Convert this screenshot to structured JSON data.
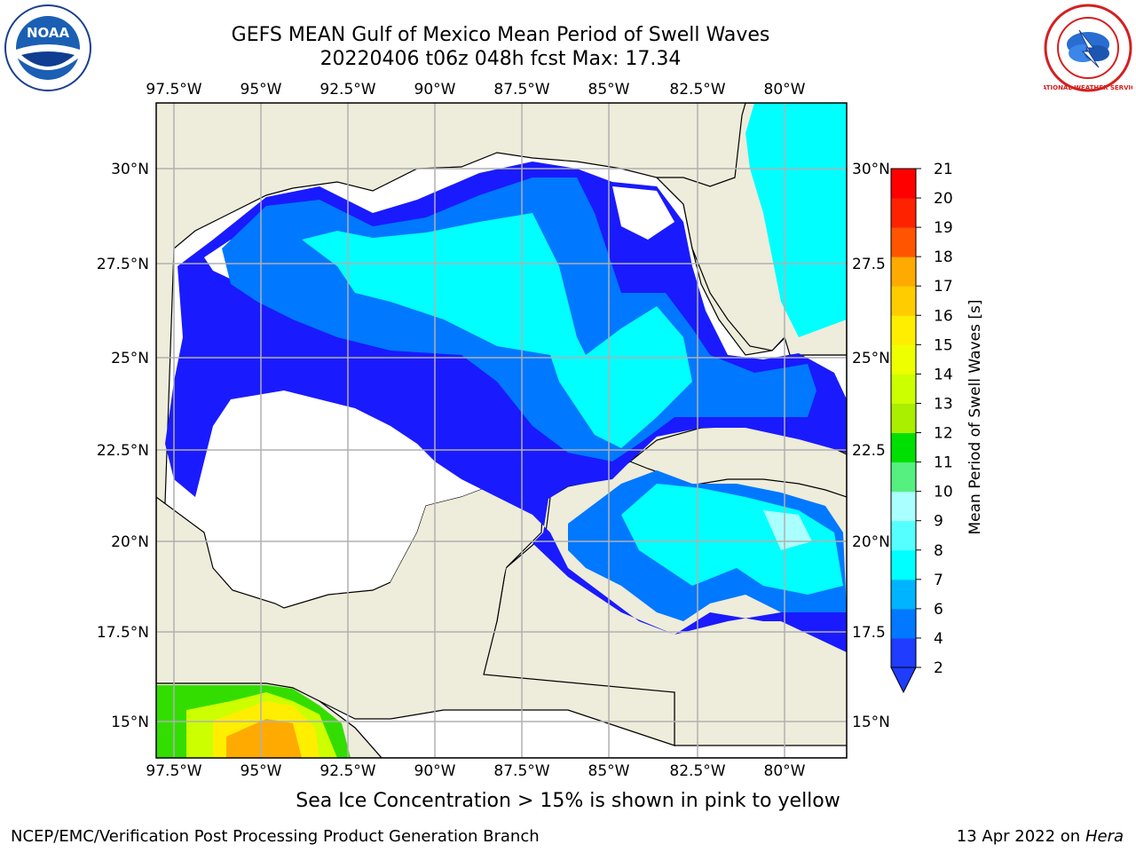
{
  "title": {
    "line1": "GEFS MEAN Gulf of Mexico Mean Period of Swell Waves",
    "line2": "20220406 t06z 048h fcst   Max: 17.34"
  },
  "logos": {
    "left": {
      "icon": "noaa-logo",
      "text": "NOAA"
    },
    "right": {
      "icon": "national-weather-service-logo",
      "text": "NATIONAL WEATHER SERVICE"
    }
  },
  "map": {
    "lon_ticks": [
      "97.5°W",
      "95°W",
      "92.5°W",
      "90°W",
      "87.5°W",
      "85°W",
      "82.5°W",
      "80°W"
    ],
    "lat_ticks_left": [
      "30°N",
      "27.5°N",
      "25°N",
      "22.5°N",
      "20°N",
      "17.5°N",
      "15°N"
    ],
    "lat_ticks_right": [
      "30°N",
      "27.5",
      "25°N",
      "22.5",
      "20°N",
      "17.5",
      "15°N"
    ],
    "colors": {
      "land": "#eeecdb",
      "no_data": "#ffffff",
      "grid": "#b0b0b0",
      "coast": "#000000"
    }
  },
  "colorbar": {
    "label": "Mean Period of Swell Waves [s]",
    "ticks": [
      "21",
      "20",
      "19",
      "18",
      "17",
      "16",
      "15",
      "14",
      "13",
      "12",
      "11",
      "10",
      "9",
      "8",
      "7",
      "6",
      "4",
      "2"
    ],
    "colors": [
      "#1f3cff",
      "#0078ff",
      "#00b4ff",
      "#00e6ff",
      "#00ffff",
      "#55ffff",
      "#aaffff",
      "#55f080",
      "#00e000",
      "#55e800",
      "#aaee00",
      "#ccff00",
      "#eeff00",
      "#ffee00",
      "#ffcc00",
      "#ffaa00",
      "#ff8800",
      "#ff5500",
      "#ff2200",
      "#ff0000"
    ]
  },
  "footer": {
    "center": "Sea Ice Concentration > 15% is shown in pink to yellow",
    "left": "NCEP/EMC/Verification Post Processing Product Generation Branch",
    "right_prefix": "13 Apr 2022 on ",
    "right_machine": "Hera"
  }
}
